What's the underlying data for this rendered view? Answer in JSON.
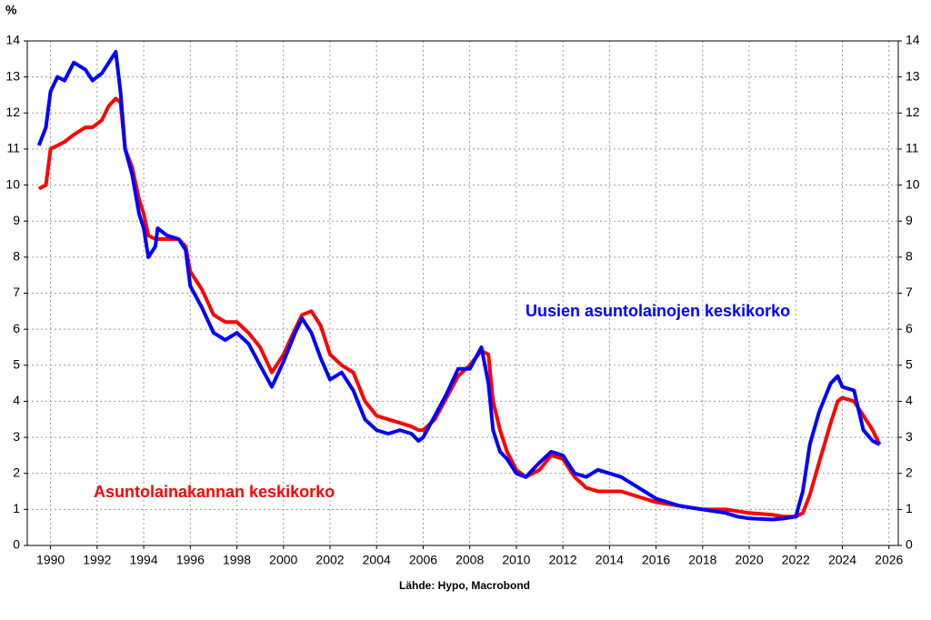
{
  "chart_data": {
    "type": "line",
    "y_unit": "%",
    "source": "Lähde: Hypo, Macrobond",
    "x": [
      1989.5,
      1989.8,
      1990.0,
      1990.3,
      1990.6,
      1991.0,
      1991.5,
      1991.8,
      1992.2,
      1992.5,
      1992.8,
      1993.0,
      1993.2,
      1993.5,
      1993.8,
      1994.0,
      1994.2,
      1994.5,
      1994.6,
      1995.0,
      1995.5,
      1995.8,
      1996.0,
      1996.5,
      1997.0,
      1997.5,
      1998.0,
      1998.5,
      1999.0,
      1999.5,
      2000.0,
      2000.5,
      2000.8,
      2001.2,
      2001.6,
      2002.0,
      2002.5,
      2003.0,
      2003.5,
      2004.0,
      2004.5,
      2005.0,
      2005.5,
      2005.8,
      2006.0,
      2006.5,
      2007.0,
      2007.5,
      2008.0,
      2008.5,
      2008.8,
      2009.0,
      2009.3,
      2009.6,
      2010.0,
      2010.4,
      2011.0,
      2011.5,
      2012.0,
      2012.5,
      2013.0,
      2013.5,
      2014.0,
      2014.5,
      2015.0,
      2015.5,
      2016.0,
      2017.0,
      2018.0,
      2019.0,
      2019.5,
      2020.0,
      2021.0,
      2021.5,
      2022.0,
      2022.3,
      2022.6,
      2023.0,
      2023.5,
      2023.8,
      2024.0,
      2024.5,
      2024.9,
      2025.3,
      2025.6
    ],
    "series": [
      {
        "name": "Asuntolainakannan keskikorko",
        "color": "#ff0000",
        "values": [
          9.9,
          10.0,
          11.0,
          11.1,
          11.2,
          11.4,
          11.6,
          11.6,
          11.8,
          12.2,
          12.4,
          12.3,
          11.0,
          10.5,
          9.6,
          9.2,
          8.6,
          8.5,
          8.5,
          8.5,
          8.5,
          8.3,
          7.6,
          7.1,
          6.4,
          6.2,
          6.2,
          5.9,
          5.5,
          4.8,
          5.3,
          6.0,
          6.4,
          6.5,
          6.1,
          5.3,
          5.0,
          4.8,
          4.0,
          3.6,
          3.5,
          3.4,
          3.3,
          3.2,
          3.2,
          3.5,
          4.1,
          4.7,
          5.0,
          5.4,
          5.3,
          4.0,
          3.2,
          2.6,
          2.1,
          1.9,
          2.1,
          2.5,
          2.4,
          1.9,
          1.6,
          1.5,
          1.5,
          1.5,
          1.4,
          1.3,
          1.2,
          1.1,
          1.0,
          1.0,
          0.95,
          0.9,
          0.85,
          0.8,
          0.8,
          0.9,
          1.4,
          2.3,
          3.4,
          4.0,
          4.1,
          4.0,
          3.6,
          3.2,
          2.8
        ]
      },
      {
        "name": "Uusien asuntolainojen keskikorko",
        "color": "#0000ff",
        "values": [
          11.1,
          11.6,
          12.6,
          13.0,
          12.9,
          13.4,
          13.2,
          12.9,
          13.1,
          13.4,
          13.7,
          12.6,
          11.0,
          10.3,
          9.2,
          8.8,
          8.0,
          8.3,
          8.8,
          8.6,
          8.5,
          8.2,
          7.2,
          6.6,
          5.9,
          5.7,
          5.9,
          5.6,
          5.0,
          4.4,
          5.1,
          5.9,
          6.3,
          5.9,
          5.2,
          4.6,
          4.8,
          4.3,
          3.5,
          3.2,
          3.1,
          3.2,
          3.1,
          2.9,
          3.0,
          3.6,
          4.2,
          4.9,
          4.9,
          5.5,
          4.5,
          3.2,
          2.6,
          2.4,
          2.0,
          1.9,
          2.3,
          2.6,
          2.5,
          2.0,
          1.9,
          2.1,
          2.0,
          1.9,
          1.7,
          1.5,
          1.3,
          1.1,
          1.0,
          0.9,
          0.8,
          0.75,
          0.72,
          0.75,
          0.8,
          1.5,
          2.8,
          3.7,
          4.5,
          4.7,
          4.4,
          4.3,
          3.2,
          2.9,
          2.8
        ]
      }
    ],
    "xlim": [
      1989,
      2026.4
    ],
    "xticks": [
      1990,
      1992,
      1994,
      1996,
      1998,
      2000,
      2002,
      2004,
      2006,
      2008,
      2010,
      2012,
      2014,
      2016,
      2018,
      2020,
      2022,
      2024,
      2026
    ],
    "ylim": [
      0,
      14
    ],
    "yticks": [
      0,
      1,
      2,
      3,
      4,
      5,
      6,
      7,
      8,
      9,
      10,
      11,
      12,
      13,
      14
    ],
    "grid": true
  }
}
